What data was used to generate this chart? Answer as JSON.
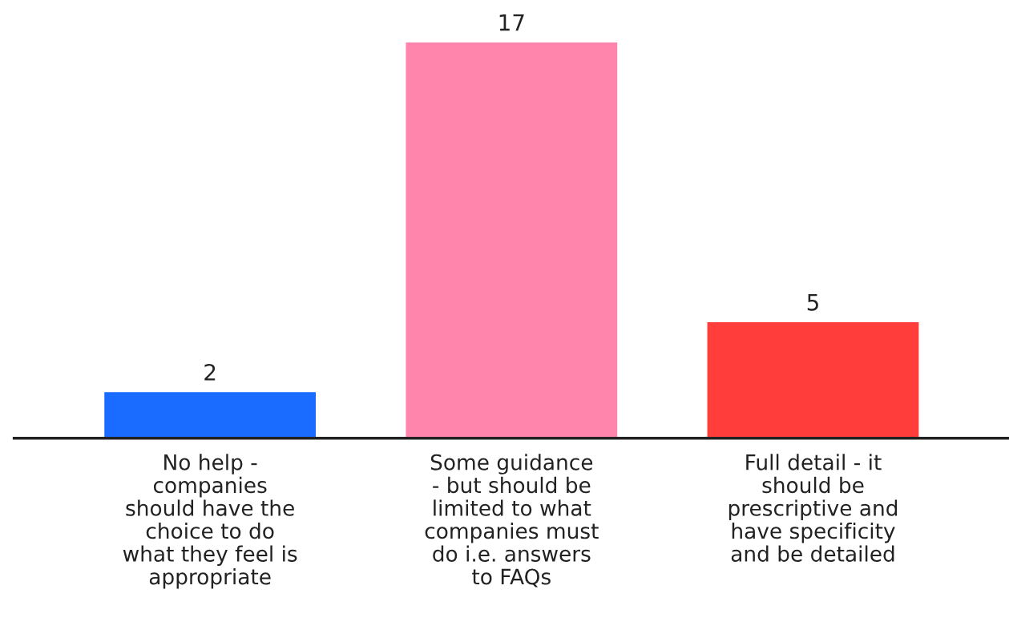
{
  "chart_data": {
    "type": "bar",
    "categories": [
      "No help -\ncompanies\nshould have the\nchoice to do\nwhat they feel is\nappropriate",
      "Some guidance\n- but should be\nlimited to what\ncompanies must\ndo i.e. answers\nto FAQs",
      "Full detail - it\nshould be\nprescriptive and\nhave specificity\nand be detailed"
    ],
    "values": [
      2,
      17,
      5
    ],
    "colors": [
      "#1a6bff",
      "#ff85ad",
      "#ff3d3a"
    ],
    "data_labels": true,
    "grid": false,
    "legend": false
  }
}
